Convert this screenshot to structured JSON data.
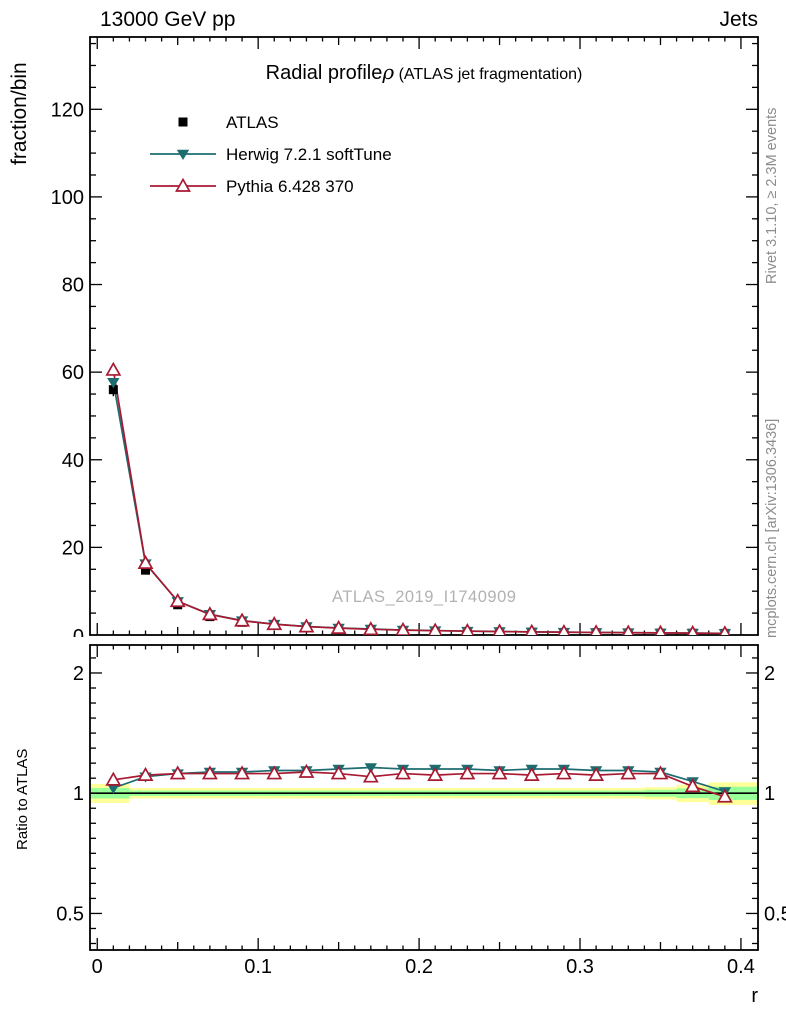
{
  "header": {
    "left_label": "13000 GeV pp",
    "right_label": "Jets"
  },
  "title": {
    "main": "Radial profile",
    "symbol": "ρ",
    "paren": " (ATLAS jet fragmentation)"
  },
  "watermark_label": "ATLAS_2019_I1740909",
  "sidebar": {
    "top_label": "Rivet 3.1.10, ≥ 2.3M events",
    "bottom_label": "mcplots.cern.ch [arXiv:1306.3436]"
  },
  "axis_labels": {
    "top_y": "fraction/bin",
    "ratio_y": "Ratio to ATLAS",
    "x": "r"
  },
  "colors": {
    "atlas": "#000000",
    "herwig": "#1d6c70",
    "pythia": "#a81932",
    "band_yellow": "#ffff99",
    "band_green": "#99ff99",
    "side_text": "#8c8c8c",
    "watermark": "#b2b2b2"
  },
  "chart_data": {
    "type": "line",
    "title": "Radial profile ρ (ATLAS jet fragmentation)",
    "xlabel": "r",
    "ylabel_top": "fraction/bin",
    "ylabel_ratio": "Ratio to ATLAS",
    "x_range": [
      -0.0045,
      0.4106
    ],
    "top_y_range": [
      0,
      136.5
    ],
    "ratio_y_range": [
      0.405,
      2.35
    ],
    "ratio_scale": "log",
    "grid": false,
    "legend_position": "top-left-inside",
    "bin_half_width": 0.01,
    "x_bin_centers": [
      0.01,
      0.03,
      0.05,
      0.07,
      0.09,
      0.11,
      0.13,
      0.15,
      0.17,
      0.19,
      0.21,
      0.23,
      0.25,
      0.27,
      0.29,
      0.31,
      0.33,
      0.35,
      0.37,
      0.39
    ],
    "x_major_ticks": [
      {
        "v": 0.0,
        "label": "0"
      },
      {
        "v": 0.1,
        "label": "0.1"
      },
      {
        "v": 0.2,
        "label": "0.2"
      },
      {
        "v": 0.3,
        "label": "0.3"
      },
      {
        "v": 0.4,
        "label": "0.4"
      }
    ],
    "x_minor_step": 0.01,
    "top_y_major_ticks": [
      {
        "v": 0,
        "label": "0"
      },
      {
        "v": 20,
        "label": "20"
      },
      {
        "v": 40,
        "label": "40"
      },
      {
        "v": 60,
        "label": "60"
      },
      {
        "v": 80,
        "label": "80"
      },
      {
        "v": 100,
        "label": "100"
      },
      {
        "v": 120,
        "label": "120"
      }
    ],
    "top_y_minor_step": 5,
    "ratio_y_major_ticks": [
      {
        "v": 0.5,
        "label": "0.5"
      },
      {
        "v": 1,
        "label": "1"
      },
      {
        "v": 2,
        "label": "2"
      }
    ],
    "ratio_minor_per_octave": 8,
    "series": [
      {
        "name": "ATLAS",
        "marker": "filled-square",
        "color": "#000000",
        "draw_line": false,
        "values": [
          56.0,
          14.8,
          6.9,
          4.2,
          2.9,
          2.2,
          1.7,
          1.4,
          1.18,
          1.0,
          0.88,
          0.78,
          0.7,
          0.63,
          0.57,
          0.52,
          0.47,
          0.43,
          0.4,
          0.37
        ],
        "errors": [
          1.5,
          0.6,
          0.3,
          0.2,
          0.15,
          0.12,
          0.1,
          0.08,
          0.07,
          0.06,
          0.05,
          0.05,
          0.04,
          0.04,
          0.04,
          0.03,
          0.03,
          0.03,
          0.03,
          0.03
        ]
      },
      {
        "name": "Herwig 7.2.1 softTune",
        "marker": "filled-triangle-down",
        "color": "#1d6c70",
        "draw_line": true,
        "values": [
          57.7,
          16.3,
          7.7,
          4.75,
          3.28,
          2.5,
          1.94,
          1.61,
          1.37,
          1.15,
          1.01,
          0.9,
          0.8,
          0.72,
          0.66,
          0.59,
          0.54,
          0.49,
          0.43,
          0.375
        ],
        "ratio": [
          1.03,
          1.1,
          1.12,
          1.13,
          1.13,
          1.14,
          1.14,
          1.15,
          1.16,
          1.15,
          1.15,
          1.15,
          1.14,
          1.15,
          1.15,
          1.14,
          1.14,
          1.13,
          1.07,
          1.01
        ]
      },
      {
        "name": "Pythia 6.428 370",
        "marker": "open-triangle-up",
        "color": "#a81932",
        "draw_line": true,
        "values": [
          60.5,
          16.4,
          7.7,
          4.7,
          3.25,
          2.46,
          1.92,
          1.57,
          1.3,
          1.12,
          0.98,
          0.87,
          0.78,
          0.7,
          0.64,
          0.58,
          0.53,
          0.48,
          0.42,
          0.36
        ],
        "ratio": [
          1.08,
          1.11,
          1.12,
          1.12,
          1.12,
          1.12,
          1.13,
          1.12,
          1.1,
          1.12,
          1.11,
          1.12,
          1.12,
          1.11,
          1.12,
          1.11,
          1.12,
          1.12,
          1.04,
          0.98
        ]
      }
    ],
    "ratio_band": {
      "yellow_color": "#ffff99",
      "green_color": "#99ff99",
      "reference_line": 1,
      "yellow_half_width": [
        0.055,
        0.03,
        0.03,
        0.03,
        0.03,
        0.03,
        0.03,
        0.03,
        0.03,
        0.03,
        0.03,
        0.03,
        0.03,
        0.03,
        0.03,
        0.03,
        0.03,
        0.035,
        0.05,
        0.065
      ],
      "green_half_width": [
        0.03,
        0.016,
        0.016,
        0.016,
        0.016,
        0.016,
        0.016,
        0.016,
        0.016,
        0.016,
        0.016,
        0.016,
        0.016,
        0.016,
        0.016,
        0.016,
        0.016,
        0.02,
        0.028,
        0.038
      ]
    }
  }
}
